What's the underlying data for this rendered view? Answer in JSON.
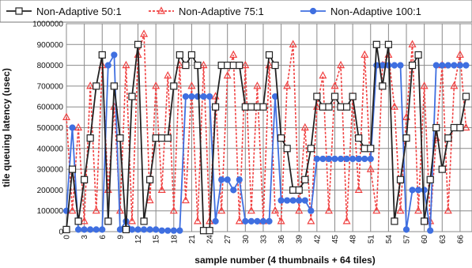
{
  "chart_data": {
    "type": "line",
    "title": "",
    "xlabel": "sample number (4 thumbnails + 64 tiles)",
    "ylabel": "tile queuing latency (usec)",
    "ylim": [
      0,
      1000000
    ],
    "xlim": [
      0,
      68
    ],
    "grid": true,
    "legend_position": "top",
    "yticks": [
      0,
      100000,
      200000,
      300000,
      400000,
      500000,
      600000,
      700000,
      800000,
      900000,
      1000000
    ],
    "xticks": [
      0,
      3,
      6,
      9,
      12,
      15,
      18,
      21,
      24,
      27,
      30,
      33,
      36,
      39,
      42,
      45,
      48,
      51,
      54,
      57,
      60,
      63,
      66
    ],
    "series": [
      {
        "name": "Non-Adaptive 50:1",
        "color": "#222222",
        "marker": "square",
        "style": "solid",
        "x": [
          0,
          1,
          2,
          3,
          4,
          5,
          6,
          7,
          8,
          9,
          10,
          11,
          12,
          13,
          14,
          15,
          16,
          17,
          18,
          19,
          20,
          21,
          22,
          23,
          24,
          25,
          26,
          27,
          28,
          29,
          30,
          31,
          32,
          33,
          34,
          35,
          36,
          37,
          38,
          39,
          40,
          41,
          42,
          43,
          44,
          45,
          46,
          47,
          48,
          49,
          50,
          51,
          52,
          53,
          54,
          55,
          56,
          57,
          58,
          59,
          60,
          61,
          62,
          63,
          64,
          65,
          66,
          67
        ],
        "values": [
          10000,
          300000,
          50000,
          250000,
          450000,
          700000,
          850000,
          50000,
          700000,
          450000,
          10000,
          650000,
          900000,
          50000,
          250000,
          450000,
          450000,
          450000,
          700000,
          850000,
          800000,
          850000,
          800000,
          5000,
          5000,
          600000,
          800000,
          800000,
          800000,
          800000,
          600000,
          600000,
          600000,
          600000,
          850000,
          800000,
          450000,
          400000,
          200000,
          200000,
          250000,
          400000,
          650000,
          600000,
          600000,
          650000,
          600000,
          600000,
          650000,
          450000,
          400000,
          400000,
          900000,
          700000,
          900000,
          50000,
          250000,
          450000,
          800000,
          850000,
          50000,
          250000,
          500000,
          300000,
          450000,
          500000,
          500000,
          650000
        ]
      },
      {
        "name": "Non-Adaptive 75:1",
        "color": "#f04040",
        "marker": "triangle",
        "style": "dashed",
        "x": [
          0,
          1,
          2,
          3,
          4,
          5,
          6,
          7,
          8,
          9,
          10,
          11,
          12,
          13,
          14,
          15,
          16,
          17,
          18,
          19,
          20,
          21,
          22,
          23,
          24,
          25,
          26,
          27,
          28,
          29,
          30,
          31,
          32,
          33,
          34,
          35,
          36,
          37,
          38,
          39,
          40,
          41,
          42,
          43,
          44,
          45,
          46,
          47,
          48,
          49,
          50,
          51,
          52,
          53,
          54,
          55,
          56,
          57,
          58,
          59,
          60,
          61,
          62,
          63,
          64,
          65,
          66,
          67
        ],
        "values": [
          550000,
          100000,
          500000,
          50000,
          700000,
          100000,
          800000,
          200000,
          600000,
          100000,
          800000,
          50000,
          850000,
          950000,
          150000,
          700000,
          200000,
          750000,
          100000,
          800000,
          150000,
          700000,
          50000,
          800000,
          50000,
          650000,
          100000,
          750000,
          850000,
          50000,
          800000,
          100000,
          700000,
          50000,
          800000,
          100000,
          50000,
          700000,
          900000,
          100000,
          500000,
          50000,
          600000,
          750000,
          100000,
          700000,
          800000,
          50000,
          650000,
          200000,
          850000,
          300000,
          100000,
          800000,
          850000,
          600000,
          100000,
          550000,
          900000,
          100000,
          700000,
          50000,
          450000,
          800000,
          100000,
          700000,
          850000,
          500000
        ]
      },
      {
        "name": "Non-Adaptive 100:1",
        "color": "#3f6fe0",
        "marker": "circle",
        "style": "solid",
        "x": [
          0,
          1,
          2,
          3,
          4,
          5,
          6,
          7,
          8,
          9,
          10,
          11,
          12,
          13,
          14,
          15,
          16,
          17,
          18,
          19,
          20,
          21,
          22,
          23,
          24,
          25,
          26,
          27,
          28,
          29,
          30,
          31,
          32,
          33,
          34,
          35,
          36,
          37,
          38,
          39,
          40,
          41,
          42,
          43,
          44,
          45,
          46,
          47,
          48,
          49,
          50,
          51,
          52,
          53,
          54,
          55,
          56,
          57,
          58,
          59,
          60,
          61,
          62,
          63,
          64,
          65,
          66,
          67
        ],
        "values": [
          100000,
          500000,
          10000,
          10000,
          10000,
          10000,
          10000,
          800000,
          850000,
          10000,
          50000,
          10000,
          10000,
          10000,
          10000,
          10000,
          5000,
          5000,
          5000,
          5000,
          650000,
          650000,
          650000,
          650000,
          650000,
          50000,
          250000,
          250000,
          200000,
          250000,
          50000,
          50000,
          50000,
          50000,
          50000,
          650000,
          150000,
          150000,
          150000,
          150000,
          150000,
          100000,
          350000,
          350000,
          350000,
          350000,
          350000,
          350000,
          350000,
          350000,
          350000,
          350000,
          800000,
          800000,
          800000,
          800000,
          800000,
          10000,
          200000,
          200000,
          200000,
          5000,
          800000,
          800000,
          800000,
          800000,
          800000,
          800000
        ]
      }
    ]
  }
}
